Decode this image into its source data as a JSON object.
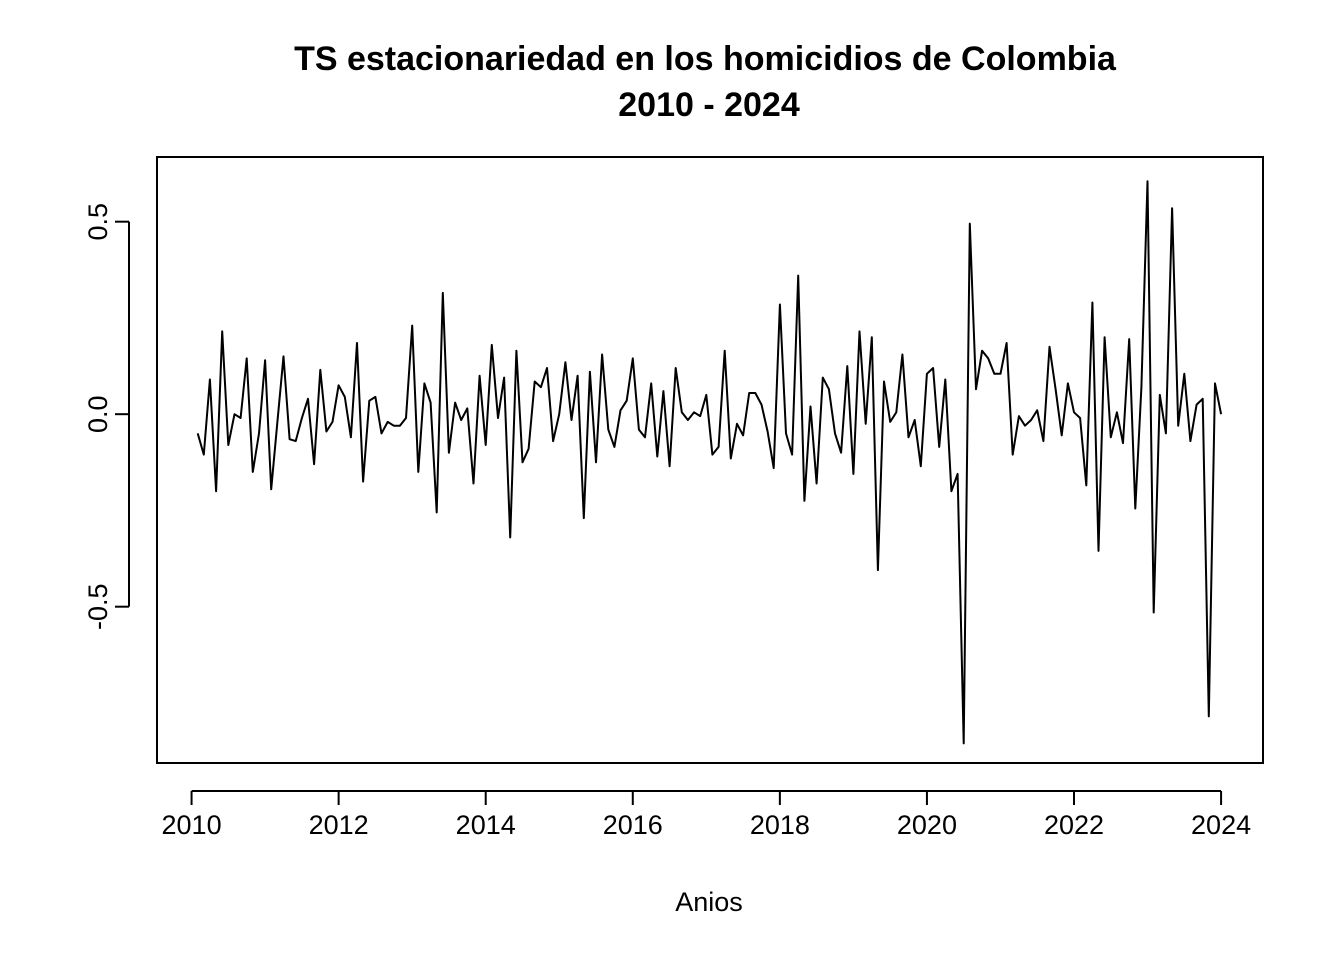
{
  "chart_data": {
    "type": "line",
    "title_lines": [
      "TS estacionariedad en los homicidios de Colombia",
      "2010 - 2024"
    ],
    "xlabel": "Anios",
    "ylabel": "",
    "x_ticks": [
      "2010",
      "2012",
      "2014",
      "2016",
      "2018",
      "2020",
      "2022",
      "2024"
    ],
    "y_ticks": [
      "-0.5",
      "0.0",
      "0.5"
    ],
    "xlim": [
      2009.53,
      2024.57
    ],
    "ylim": [
      -0.906,
      0.668
    ],
    "grid": false,
    "series": [
      {
        "color": "#000000",
        "x_start": 2010.083333,
        "x_step": 0.083333,
        "values": [
          -0.05,
          -0.105,
          0.09,
          -0.2,
          0.215,
          -0.08,
          0.0,
          -0.01,
          0.145,
          -0.15,
          -0.05,
          0.14,
          -0.195,
          -0.02,
          0.15,
          -0.065,
          -0.07,
          -0.01,
          0.04,
          -0.13,
          0.115,
          -0.045,
          -0.02,
          0.075,
          0.045,
          -0.06,
          0.185,
          -0.175,
          0.035,
          0.045,
          -0.05,
          -0.02,
          -0.03,
          -0.03,
          -0.01,
          0.23,
          -0.15,
          0.08,
          0.03,
          -0.255,
          0.315,
          -0.1,
          0.03,
          -0.015,
          0.015,
          -0.18,
          0.1,
          -0.08,
          0.18,
          -0.01,
          0.095,
          -0.32,
          0.165,
          -0.125,
          -0.09,
          0.085,
          0.07,
          0.12,
          -0.07,
          0.0,
          0.135,
          -0.015,
          0.1,
          -0.27,
          0.11,
          -0.125,
          0.155,
          -0.04,
          -0.085,
          0.01,
          0.035,
          0.145,
          -0.04,
          -0.06,
          0.08,
          -0.11,
          0.06,
          -0.135,
          0.12,
          0.005,
          -0.015,
          0.005,
          -0.005,
          0.05,
          -0.105,
          -0.085,
          0.165,
          -0.115,
          -0.025,
          -0.055,
          0.055,
          0.055,
          0.025,
          -0.045,
          -0.14,
          0.285,
          -0.05,
          -0.105,
          0.36,
          -0.225,
          0.02,
          -0.18,
          0.095,
          0.065,
          -0.05,
          -0.1,
          0.125,
          -0.155,
          0.215,
          -0.025,
          0.2,
          -0.405,
          0.085,
          -0.02,
          0.005,
          0.155,
          -0.06,
          -0.015,
          -0.135,
          0.105,
          0.12,
          -0.085,
          0.09,
          -0.2,
          -0.155,
          -0.855,
          0.495,
          0.065,
          0.165,
          0.145,
          0.105,
          0.105,
          0.185,
          -0.105,
          -0.005,
          -0.03,
          -0.015,
          0.01,
          -0.07,
          0.175,
          0.065,
          -0.055,
          0.08,
          0.005,
          -0.01,
          -0.185,
          0.29,
          -0.355,
          0.2,
          -0.06,
          0.005,
          -0.075,
          0.195,
          -0.245,
          0.07,
          0.605,
          -0.515,
          0.05,
          -0.05,
          0.535,
          -0.03,
          0.105,
          -0.07,
          0.025,
          0.04,
          -0.785,
          0.08,
          0.0
        ]
      }
    ]
  }
}
